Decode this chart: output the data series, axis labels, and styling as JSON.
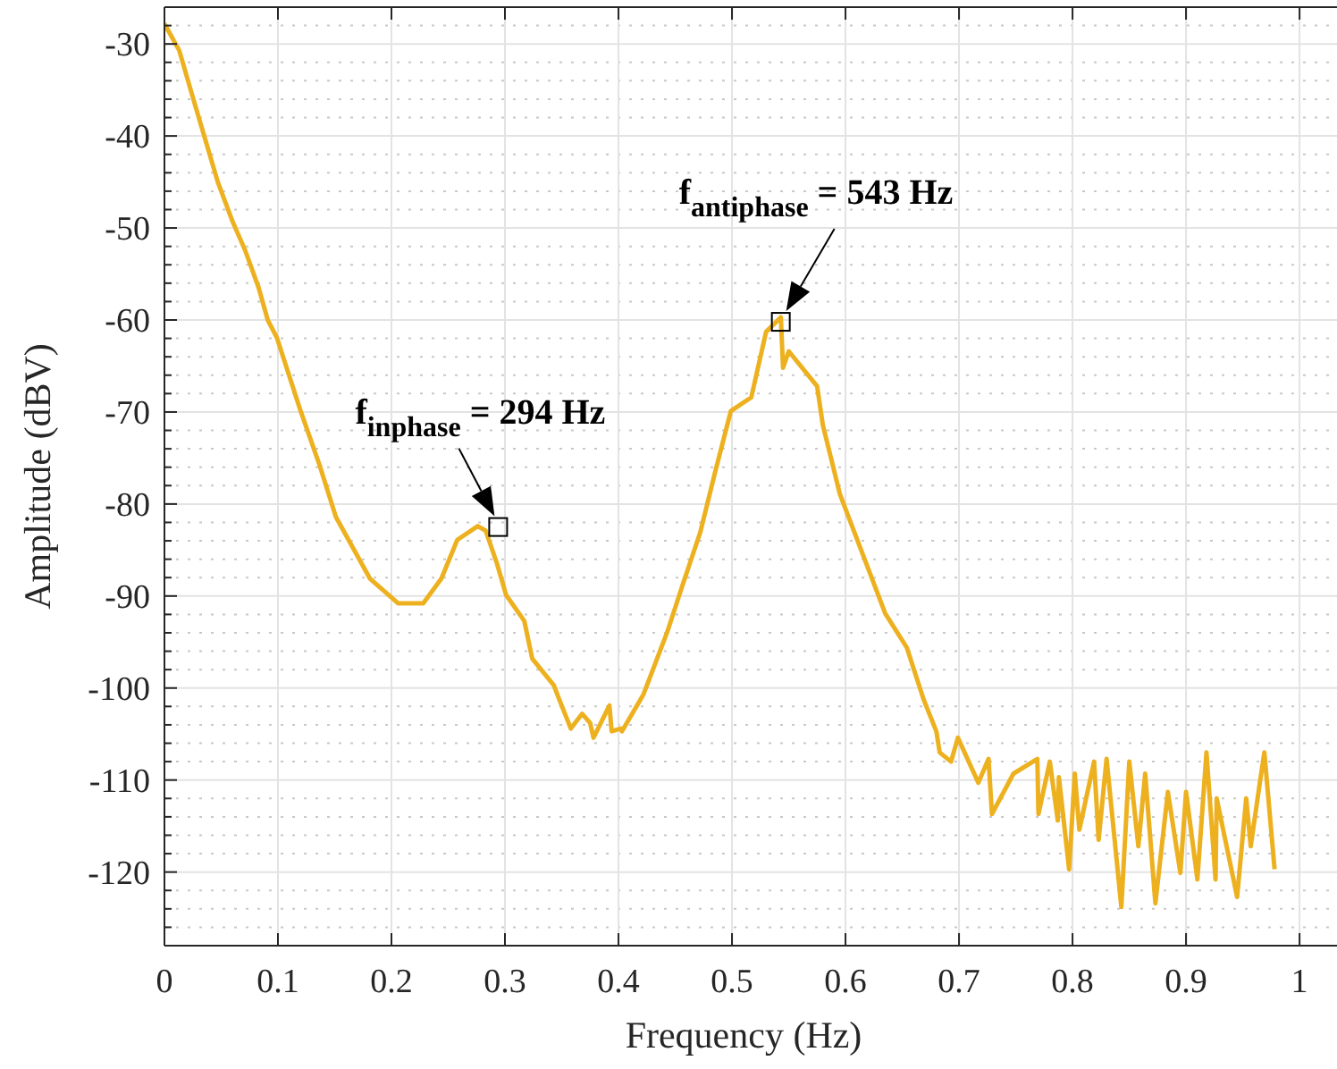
{
  "chart_data": {
    "type": "line",
    "xlabel": "Frequency (Hz)",
    "ylabel": "Amplitude (dBV)",
    "grid": true,
    "xlim": [
      0,
      1.033
    ],
    "xticks": [
      0,
      0.1,
      0.2,
      0.3,
      0.4,
      0.5,
      0.6,
      0.7,
      0.8,
      0.9,
      1
    ],
    "ylim": [
      -128,
      -26
    ],
    "yticks": [
      -30,
      -40,
      -50,
      -60,
      -70,
      -80,
      -90,
      -100,
      -110,
      -120
    ],
    "annotations": [
      {
        "text": "f$_{inphase}$ = 294 Hz",
        "x": 0.294,
        "y": -82.5
      },
      {
        "text": "f$_{antiphase}$ = 543 Hz",
        "x": 0.543,
        "y": -60.2
      }
    ],
    "series": [
      {
        "color": "#edb120",
        "marker": "none",
        "line_style": "solid",
        "x": [
          0,
          0.013,
          0.025,
          0.036,
          0.047,
          0.06,
          0.071,
          0.083,
          0.091,
          0.099,
          0.12,
          0.137,
          0.151,
          0.181,
          0.206,
          0.228,
          0.244,
          0.258,
          0.276,
          0.283,
          0.293,
          0.301,
          0.317,
          0.324,
          0.343,
          0.348,
          0.358,
          0.368,
          0.375,
          0.378,
          0.392,
          0.394,
          0.402,
          0.403,
          0.422,
          0.443,
          0.457,
          0.472,
          0.485,
          0.499,
          0.517,
          0.53,
          0.543,
          0.545,
          0.55,
          0.575,
          0.58,
          0.595,
          0.635,
          0.654,
          0.669,
          0.68,
          0.683,
          0.693,
          0.699,
          0.717,
          0.726,
          0.729,
          0.748,
          0.769,
          0.77,
          0.78,
          0.787,
          0.788,
          0.797,
          0.802,
          0.806,
          0.819,
          0.823,
          0.83,
          0.843,
          0.85,
          0.858,
          0.864,
          0.873,
          0.884,
          0.895,
          0.9,
          0.91,
          0.918,
          0.926,
          0.927,
          0.945,
          0.953,
          0.957,
          0.965,
          0.969,
          0.978
        ],
        "values": [
          -27.8,
          -30.7,
          -35.8,
          -40.4,
          -45,
          -49.3,
          -52.4,
          -56.5,
          -60,
          -61.9,
          -69.9,
          -75.9,
          -81.4,
          -88.1,
          -90.8,
          -90.8,
          -88.1,
          -83.9,
          -82.4,
          -82.9,
          -86.5,
          -89.9,
          -92.7,
          -96.8,
          -99.7,
          -101.3,
          -104.4,
          -102.8,
          -103.8,
          -105.4,
          -101.9,
          -104.7,
          -104.4,
          -104.7,
          -100.7,
          -93.9,
          -88.6,
          -83.1,
          -76.6,
          -69.9,
          -68.4,
          -61.3,
          -59.7,
          -65.2,
          -63.4,
          -67.2,
          -71.4,
          -78.9,
          -91.9,
          -95.6,
          -101.3,
          -104.7,
          -107,
          -108,
          -105.4,
          -110.3,
          -107.7,
          -113.7,
          -109.3,
          -107.7,
          -113.7,
          -108,
          -114.4,
          -109.7,
          -119.7,
          -109.3,
          -115.4,
          -108,
          -116.5,
          -107.7,
          -123.8,
          -108,
          -117.2,
          -109.3,
          -123.4,
          -111.3,
          -120.1,
          -111.3,
          -120.8,
          -107,
          -120.8,
          -112,
          -122.7,
          -112,
          -117.2,
          -110.3,
          -107,
          -119.7
        ]
      },
      {
        "type": "scatter",
        "color": "#000000",
        "marker": "square",
        "x": [
          0.294,
          0.543
        ],
        "values": [
          -82.5,
          -60.2
        ]
      }
    ]
  }
}
